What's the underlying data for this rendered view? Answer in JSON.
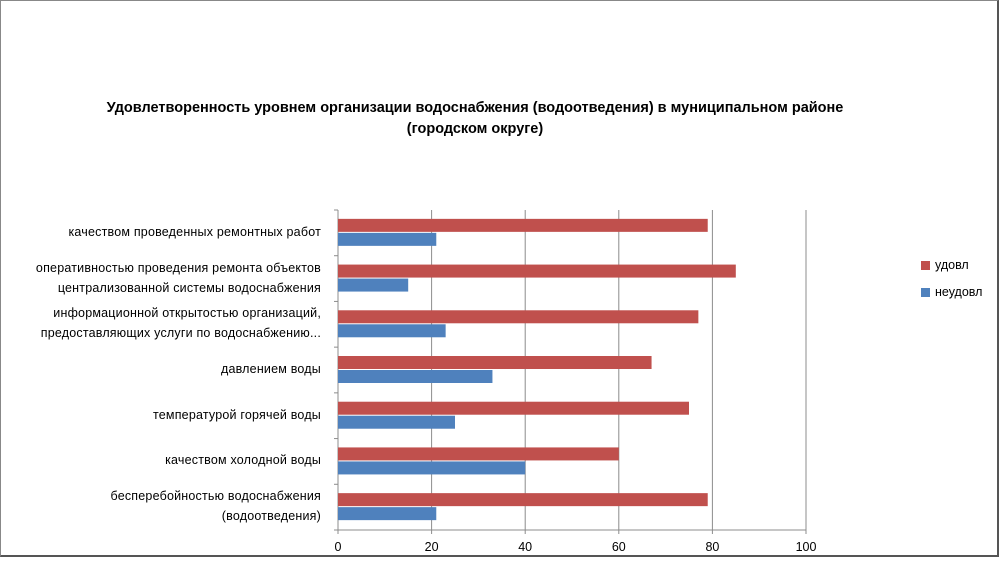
{
  "chart_data": {
    "type": "bar",
    "orientation": "horizontal",
    "title": "Удовлетворенность уровнем организации водоснабжения (водоотведения) в муниципальном районе",
    "subtitle": "(городском округе)",
    "categories": [
      [
        "качеством  проведенных  ремонтных работ"
      ],
      [
        "оперативностью  проведения  ремонта объектов",
        "централизованной системы водоснабжения"
      ],
      [
        "информационной  открытостью организаций,",
        "предоставляющих услуги по водоснабжению..."
      ],
      [
        "давлением  воды"
      ],
      [
        "температурой горячей воды"
      ],
      [
        "качеством  холодной воды"
      ],
      [
        "бесперебойностью  водоснабжения",
        "(водоотведения)"
      ]
    ],
    "series": [
      {
        "name": "удовл",
        "color": "#c0504d",
        "values": [
          79,
          85,
          77,
          67,
          75,
          60,
          79
        ]
      },
      {
        "name": "неудовл",
        "color": "#4f81bd",
        "values": [
          21,
          15,
          23,
          33,
          25,
          40,
          21
        ]
      }
    ],
    "xlim": [
      0,
      100
    ],
    "xticks": [
      "0",
      "20",
      "40",
      "60",
      "80",
      "100"
    ],
    "grid": true,
    "legend_position": "right"
  }
}
